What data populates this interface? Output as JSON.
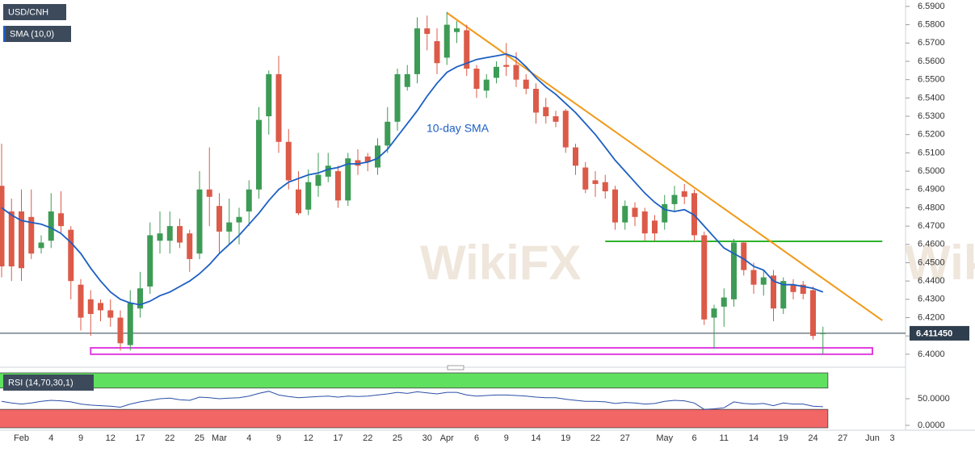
{
  "chart_data": {
    "type": "candlestick",
    "symbol": "USD/CNH",
    "watermark": "WikiFX",
    "sma_annotation": "10-day SMA",
    "up_color": "#3d9b55",
    "down_color": "#dc5a48",
    "categories": [
      null,
      null,
      "Feb",
      null,
      null,
      "4",
      null,
      null,
      "9",
      null,
      null,
      "12",
      null,
      null,
      "17",
      null,
      null,
      "22",
      null,
      null,
      "25",
      null,
      "Mar",
      null,
      null,
      "4",
      null,
      null,
      "9",
      null,
      null,
      "12",
      null,
      null,
      "17",
      null,
      null,
      "22",
      null,
      null,
      "25",
      null,
      null,
      "30",
      null,
      "Apr",
      null,
      null,
      "6",
      null,
      null,
      "9",
      null,
      null,
      "14",
      null,
      null,
      "19",
      null,
      null,
      "22",
      null,
      null,
      "27",
      null,
      null,
      null,
      "May",
      null,
      null,
      "6",
      null,
      null,
      "11",
      null,
      null,
      "14",
      null,
      null,
      "19",
      null,
      null,
      "24",
      null,
      null,
      "27",
      null,
      null,
      "Jun",
      null,
      "3",
      null
    ],
    "open": [
      6.492,
      6.478,
      6.478,
      6.475,
      6.458,
      6.462,
      6.477,
      6.468,
      6.438,
      6.43,
      6.428,
      6.424,
      6.42,
      6.405,
      6.425,
      6.437,
      6.462,
      6.462,
      6.47,
      6.466,
      6.455,
      6.49,
      6.481,
      6.467,
      6.472,
      6.478,
      6.49,
      6.53,
      6.553,
      6.516,
      6.49,
      6.479,
      6.492,
      6.497,
      6.5,
      6.484,
      6.506,
      6.508,
      6.502,
      6.514,
      6.527,
      6.546,
      6.553,
      6.578,
      6.571,
      6.562,
      6.576,
      6.577,
      6.556,
      6.544,
      6.551,
      6.558,
      6.558,
      6.55,
      6.545,
      6.535,
      6.53,
      6.533,
      6.513,
      6.502,
      6.495,
      6.494,
      6.49,
      6.472,
      6.48,
      6.478,
      6.473,
      6.472,
      6.482,
      6.489,
      6.488,
      6.465,
      6.42,
      6.426,
      6.43,
      6.461,
      6.446,
      6.438,
      6.443,
      6.425,
      6.438,
      6.438,
      6.435,
      6.411,
      null,
      null,
      null,
      null,
      null,
      null,
      null,
      null
    ],
    "high": [
      6.515,
      6.485,
      6.49,
      6.49,
      6.465,
      6.488,
      6.489,
      6.47,
      6.441,
      6.435,
      6.43,
      6.43,
      6.424,
      6.435,
      6.445,
      6.472,
      6.478,
      6.478,
      6.474,
      6.468,
      6.5,
      6.513,
      6.488,
      6.485,
      6.48,
      6.495,
      6.535,
      6.555,
      6.563,
      6.523,
      6.5,
      6.501,
      6.51,
      6.51,
      6.503,
      6.51,
      6.512,
      6.51,
      6.518,
      6.535,
      6.556,
      6.558,
      6.584,
      6.585,
      6.578,
      6.587,
      6.582,
      6.58,
      6.558,
      6.553,
      6.56,
      6.57,
      6.565,
      6.553,
      6.548,
      6.54,
      6.533,
      6.534,
      6.515,
      6.505,
      6.5,
      6.498,
      6.492,
      6.484,
      6.483,
      6.48,
      6.476,
      6.487,
      6.492,
      6.493,
      6.49,
      6.467,
      6.427,
      6.436,
      6.463,
      6.462,
      6.45,
      6.446,
      6.446,
      6.442,
      6.441,
      6.44,
      6.437,
      6.415,
      null,
      null,
      null,
      null,
      null,
      null,
      null,
      null
    ],
    "low": [
      6.442,
      6.44,
      6.44,
      6.452,
      6.455,
      6.458,
      6.466,
      6.43,
      6.413,
      6.41,
      6.418,
      6.415,
      6.402,
      6.402,
      6.42,
      6.433,
      6.455,
      6.455,
      6.458,
      6.445,
      6.452,
      6.47,
      6.455,
      6.46,
      6.46,
      6.47,
      6.485,
      6.52,
      6.51,
      6.49,
      6.476,
      6.476,
      6.486,
      6.494,
      6.48,
      6.481,
      6.498,
      6.5,
      6.498,
      6.51,
      6.522,
      6.544,
      6.548,
      6.566,
      6.553,
      6.558,
      6.57,
      6.552,
      6.54,
      6.54,
      6.548,
      6.552,
      6.546,
      6.542,
      6.526,
      6.526,
      6.524,
      6.51,
      6.498,
      6.488,
      6.486,
      6.485,
      6.468,
      6.468,
      6.47,
      6.462,
      6.462,
      6.468,
      6.478,
      6.482,
      6.462,
      6.416,
      6.403,
      6.415,
      6.426,
      6.443,
      6.433,
      6.432,
      6.418,
      6.422,
      6.43,
      6.43,
      6.408,
      6.4,
      null,
      null,
      null,
      null,
      null,
      null,
      null,
      null
    ],
    "close": [
      6.448,
      6.448,
      6.447,
      6.455,
      6.461,
      6.478,
      6.47,
      6.44,
      6.42,
      6.422,
      6.424,
      6.42,
      6.406,
      6.428,
      6.436,
      6.465,
      6.466,
      6.47,
      6.461,
      6.452,
      6.49,
      6.486,
      6.467,
      6.472,
      6.475,
      6.49,
      6.528,
      6.553,
      6.516,
      6.495,
      6.477,
      6.494,
      6.498,
      6.503,
      6.484,
      6.507,
      6.503,
      6.505,
      6.514,
      6.527,
      6.553,
      6.553,
      6.578,
      6.575,
      6.559,
      6.58,
      6.578,
      6.556,
      6.545,
      6.55,
      6.557,
      6.557,
      6.55,
      6.545,
      6.532,
      6.53,
      6.527,
      6.513,
      6.503,
      6.49,
      6.493,
      6.489,
      6.472,
      6.481,
      6.475,
      6.466,
      6.466,
      6.482,
      6.487,
      6.486,
      6.465,
      6.419,
      6.425,
      6.431,
      6.461,
      6.446,
      6.438,
      6.442,
      6.425,
      6.44,
      6.434,
      6.433,
      6.41,
      6.4115,
      null,
      null,
      null,
      null,
      null,
      null,
      null,
      null
    ],
    "series": [
      {
        "name": "SMA (10,0)",
        "color": "#1c5fc4",
        "values": [
          6.48,
          6.476,
          6.473,
          6.472,
          6.471,
          6.469,
          6.466,
          6.461,
          6.455,
          6.447,
          6.44,
          6.434,
          6.43,
          6.428,
          6.427,
          6.429,
          6.432,
          6.434,
          6.437,
          6.44,
          6.444,
          6.449,
          6.455,
          6.46,
          6.465,
          6.471,
          6.477,
          6.484,
          6.49,
          6.494,
          6.496,
          6.498,
          6.499,
          6.501,
          6.502,
          6.504,
          6.504,
          6.505,
          6.507,
          6.512,
          6.519,
          6.526,
          6.533,
          6.541,
          6.548,
          6.554,
          6.557,
          6.559,
          6.561,
          6.562,
          6.563,
          6.564,
          6.562,
          6.557,
          6.551,
          6.546,
          6.542,
          6.537,
          6.532,
          6.526,
          6.52,
          6.513,
          6.506,
          6.5,
          6.494,
          6.488,
          6.483,
          6.479,
          6.478,
          6.479,
          6.476,
          6.47,
          6.464,
          6.458,
          6.455,
          6.452,
          6.448,
          6.446,
          6.44,
          6.438,
          6.438,
          6.437,
          6.436,
          6.434,
          null,
          null,
          null,
          null,
          null,
          null,
          null,
          null
        ]
      }
    ],
    "ylim": [
      6.3951,
      6.5935
    ],
    "yticks": [
      {
        "value": 6.4,
        "label": "6.4000"
      },
      {
        "value": 6.41,
        "label": "6.4100"
      },
      {
        "value": 6.42,
        "label": "6.4200"
      },
      {
        "value": 6.43,
        "label": "6.4300"
      },
      {
        "value": 6.44,
        "label": "6.4400"
      },
      {
        "value": 6.45,
        "label": "6.4500"
      },
      {
        "value": 6.46,
        "label": "6.4600"
      },
      {
        "value": 6.47,
        "label": "6.4700"
      },
      {
        "value": 6.48,
        "label": "6.4800"
      },
      {
        "value": 6.49,
        "label": "6.4900"
      },
      {
        "value": 6.5,
        "label": "6.5000"
      },
      {
        "value": 6.51,
        "label": "6.5100"
      },
      {
        "value": 6.52,
        "label": "6.5200"
      },
      {
        "value": 6.53,
        "label": "6.5300"
      },
      {
        "value": 6.54,
        "label": "6.5400"
      },
      {
        "value": 6.55,
        "label": "6.5500"
      },
      {
        "value": 6.56,
        "label": "6.5600"
      },
      {
        "value": 6.57,
        "label": "6.5700"
      },
      {
        "value": 6.58,
        "label": "6.5800"
      },
      {
        "value": 6.59,
        "label": "6.5900"
      }
    ],
    "last_price": {
      "value": 6.41145,
      "label": "6.411450"
    },
    "resistance_line": {
      "color": "#f09a1a",
      "x": [
        45,
        89
      ],
      "y": [
        6.5865,
        6.4185
      ]
    },
    "support_level": {
      "color": "#2cb52c",
      "x": [
        61,
        89
      ],
      "y": 6.4617
    },
    "support_zone": {
      "color": "#e03ee0",
      "x": [
        9,
        88
      ],
      "y": [
        6.4,
        6.4035
      ]
    },
    "rsi": {
      "name": "RSI (14,70,30,1)",
      "color": "#2a4fa6",
      "levels": [
        30,
        70
      ],
      "upper_color": "#5fe05f",
      "lower_color": "#f26666",
      "ylim": [
        -7.6,
        104.5
      ],
      "yticks": [
        {
          "value": 0,
          "label": "0.0000"
        },
        {
          "value": 50,
          "label": "50.0000"
        }
      ],
      "values": [
        45,
        42,
        40,
        42,
        45,
        47,
        46,
        44,
        40,
        38,
        37,
        36,
        34,
        40,
        44,
        47,
        50,
        51,
        48,
        47,
        53,
        52,
        50,
        51,
        52,
        55,
        60,
        64,
        57,
        54,
        52,
        53,
        54,
        55,
        53,
        55,
        54,
        55,
        57,
        59,
        62,
        60,
        63,
        61,
        59,
        62,
        62,
        57,
        55,
        56,
        57,
        57,
        56,
        55,
        53,
        52,
        52,
        49,
        47,
        45,
        45,
        44,
        41,
        43,
        42,
        40,
        41,
        45,
        47,
        46,
        42,
        30,
        31,
        33,
        44,
        41,
        40,
        41,
        37,
        42,
        40,
        40,
        36,
        35,
        null,
        null,
        null,
        null,
        null,
        null,
        null,
        null
      ]
    }
  }
}
